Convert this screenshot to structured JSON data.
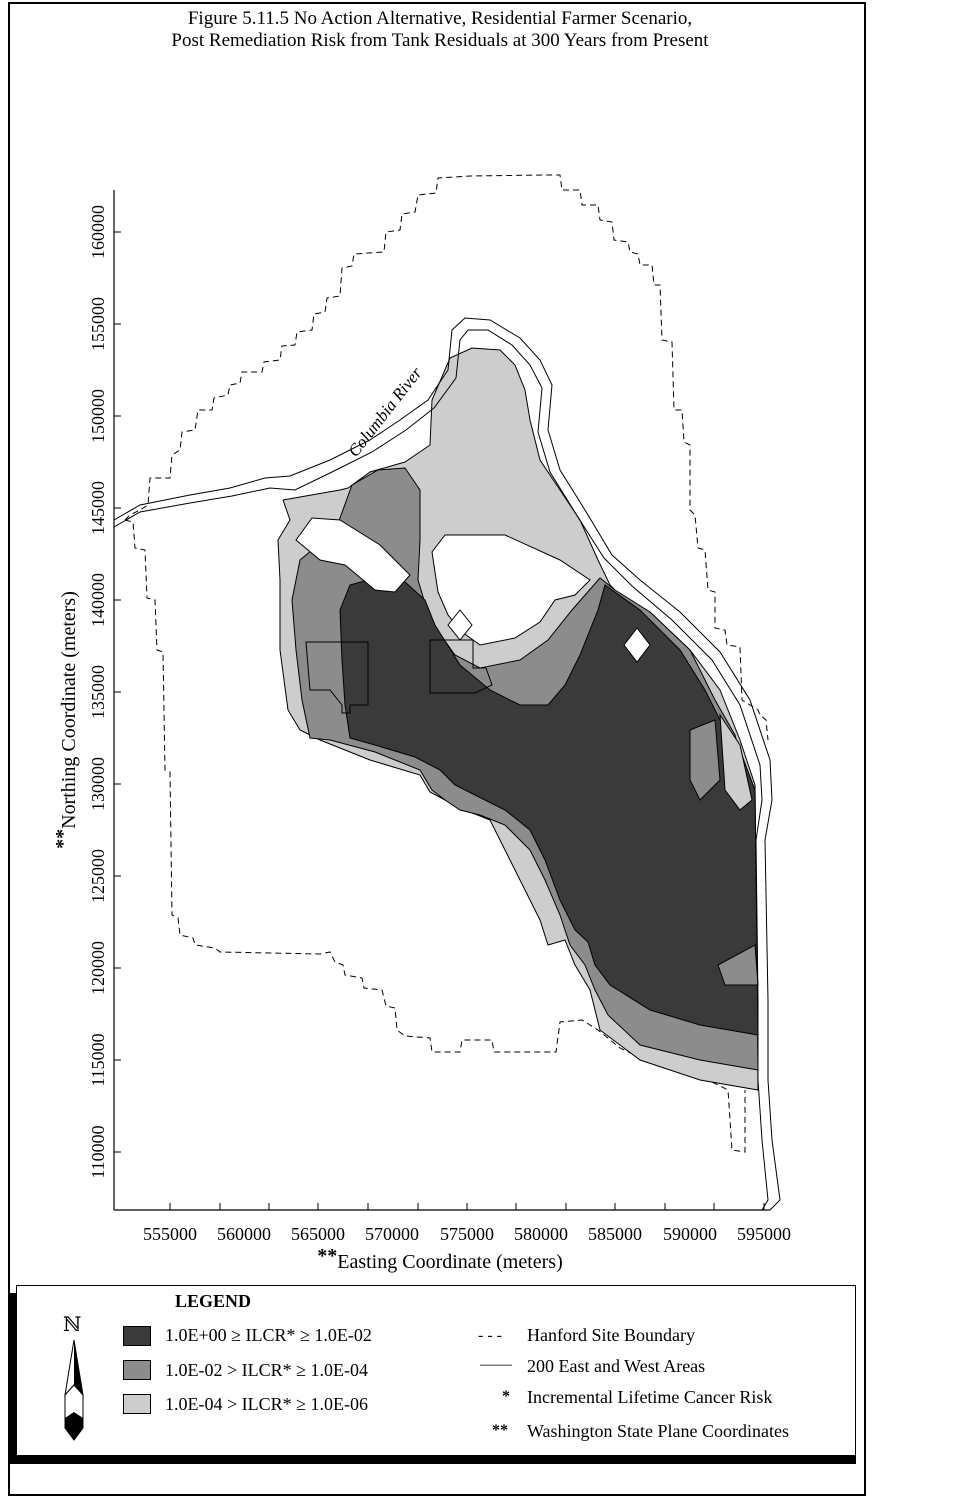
{
  "title_line1": "Figure 5.11.5  No Action Alternative, Residential Farmer Scenario,",
  "title_line2": "Post Remediation Risk from Tank Residuals at 300 Years from Present",
  "river_label": "Columbia River",
  "axes": {
    "x_label_prefix": "**",
    "x_label": "Easting Coordinate (meters)",
    "y_label_prefix": "**",
    "y_label": "Northing Coordinate (meters)",
    "x_ticks": [
      "555000",
      "560000",
      "565000",
      "570000",
      "575000",
      "580000",
      "585000",
      "590000",
      "595000"
    ],
    "y_ticks": [
      "160000",
      "155000",
      "150000",
      "145000",
      "140000",
      "135000",
      "130000",
      "125000",
      "120000",
      "115000",
      "110000"
    ]
  },
  "legend": {
    "title": "LEGEND",
    "north_symbol": "ℕ",
    "risk_classes": [
      {
        "range": "1.0E+00 ≥ ILCR* ≥ 1.0E-02",
        "color": "#3a3a3a"
      },
      {
        "range": "1.0E-02 > ILCR* ≥ 1.0E-04",
        "color": "#8c8c8c"
      },
      {
        "range": "1.0E-04 > ILCR* ≥ 1.0E-06",
        "color": "#cdcdcd"
      }
    ],
    "symbols": [
      {
        "mark": "- - -",
        "text": "Hanford Site Boundary"
      },
      {
        "mark": "——",
        "text": "200 East and West Areas"
      },
      {
        "mark": "*",
        "text": "Incremental Lifetime Cancer Risk"
      },
      {
        "mark": "**",
        "text": "Washington State Plane Coordinates"
      }
    ]
  }
}
